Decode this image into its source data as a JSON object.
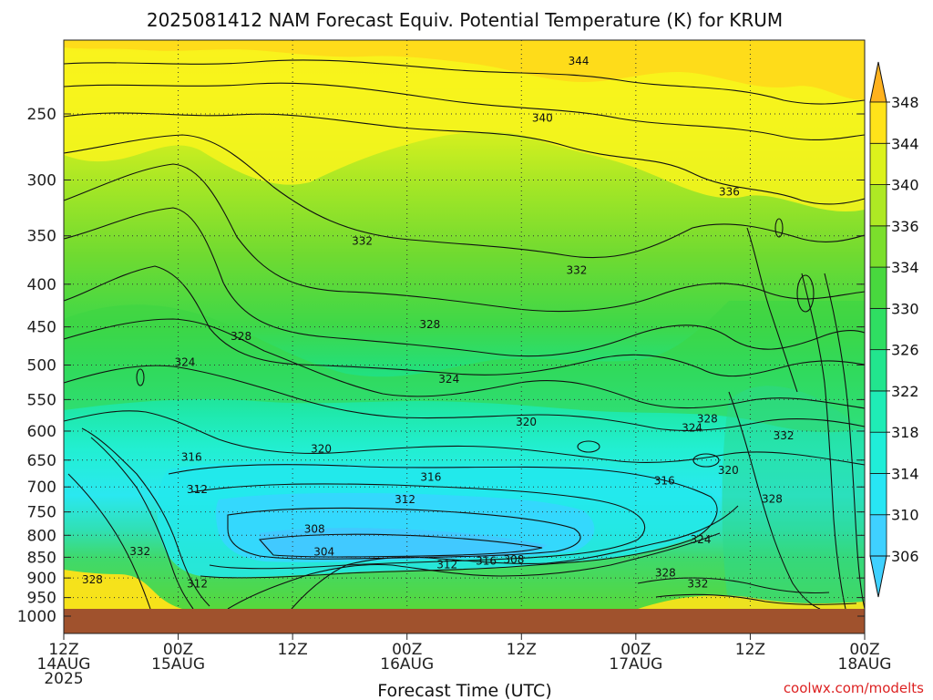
{
  "chart_data": {
    "type": "heatmap",
    "title": "2025081412 NAM Forecast Equiv. Potential Temperature (K) for KRUM",
    "xlabel": "Forecast Time (UTC)",
    "credit": "coolwx.com/modelts",
    "y_axis": {
      "quantity": "pressure",
      "ticks": [
        250,
        300,
        350,
        400,
        450,
        500,
        550,
        600,
        650,
        700,
        750,
        800,
        850,
        900,
        950,
        1000
      ],
      "range": [
        1000,
        200
      ],
      "inverted": true
    },
    "x_axis": {
      "ticks": [
        {
          "hour": 0,
          "line1": "12Z",
          "line2": "14AUG",
          "line3": "2025"
        },
        {
          "hour": 12,
          "line1": "00Z",
          "line2": "15AUG",
          "line3": ""
        },
        {
          "hour": 24,
          "line1": "12Z",
          "line2": "",
          "line3": ""
        },
        {
          "hour": 36,
          "line1": "00Z",
          "line2": "16AUG",
          "line3": ""
        },
        {
          "hour": 48,
          "line1": "12Z",
          "line2": "",
          "line3": ""
        },
        {
          "hour": 60,
          "line1": "00Z",
          "line2": "17AUG",
          "line3": ""
        },
        {
          "hour": 72,
          "line1": "12Z",
          "line2": "",
          "line3": ""
        },
        {
          "hour": 84,
          "line1": "00Z",
          "line2": "18AUG",
          "line3": ""
        }
      ],
      "range": [
        0,
        84
      ]
    },
    "colorbar": {
      "labels": [
        306,
        310,
        314,
        318,
        322,
        326,
        330,
        334,
        336,
        340,
        344,
        348
      ],
      "colors": [
        "#3fd1ff",
        "#28e6f4",
        "#20eed8",
        "#1fecb6",
        "#22e58e",
        "#2fde62",
        "#48d83e",
        "#7bdf2c",
        "#aee924",
        "#dcf21c",
        "#ffe31a",
        "#ffb21e"
      ]
    },
    "contour_labels": [
      {
        "value": "344",
        "hour": 54,
        "p": 216
      },
      {
        "value": "340",
        "hour": 50.2,
        "p": 253
      },
      {
        "value": "336",
        "hour": 69.8,
        "p": 310
      },
      {
        "value": "332",
        "hour": 31.3,
        "p": 355
      },
      {
        "value": "332",
        "hour": 53.8,
        "p": 385
      },
      {
        "value": "328",
        "hour": 18.6,
        "p": 462
      },
      {
        "value": "328",
        "hour": 38.4,
        "p": 447
      },
      {
        "value": "324",
        "hour": 12.7,
        "p": 496
      },
      {
        "value": "324",
        "hour": 40.4,
        "p": 520
      },
      {
        "value": "320",
        "hour": 48.5,
        "p": 585
      },
      {
        "value": "328",
        "hour": 67.5,
        "p": 580
      },
      {
        "value": "324",
        "hour": 65.9,
        "p": 595
      },
      {
        "value": "332",
        "hour": 75.5,
        "p": 608
      },
      {
        "value": "316",
        "hour": 13.4,
        "p": 645
      },
      {
        "value": "320",
        "hour": 27,
        "p": 630
      },
      {
        "value": "316",
        "hour": 38.5,
        "p": 681
      },
      {
        "value": "312",
        "hour": 14,
        "p": 705
      },
      {
        "value": "312",
        "hour": 35.8,
        "p": 725
      },
      {
        "value": "316",
        "hour": 63,
        "p": 688
      },
      {
        "value": "320",
        "hour": 69.7,
        "p": 669
      },
      {
        "value": "328",
        "hour": 74.3,
        "p": 724
      },
      {
        "value": "308",
        "hour": 26.3,
        "p": 786
      },
      {
        "value": "304",
        "hour": 27.3,
        "p": 837
      },
      {
        "value": "332",
        "hour": 8,
        "p": 836
      },
      {
        "value": "312",
        "hour": 40.2,
        "p": 868
      },
      {
        "value": "316",
        "hour": 44.3,
        "p": 859
      },
      {
        "value": "308",
        "hour": 47.2,
        "p": 856
      },
      {
        "value": "324",
        "hour": 66.8,
        "p": 810
      },
      {
        "value": "328",
        "hour": 63.1,
        "p": 887
      },
      {
        "value": "332",
        "hour": 66.5,
        "p": 914
      },
      {
        "value": "328",
        "hour": 3,
        "p": 904
      },
      {
        "value": "312",
        "hour": 14,
        "p": 915
      }
    ]
  }
}
